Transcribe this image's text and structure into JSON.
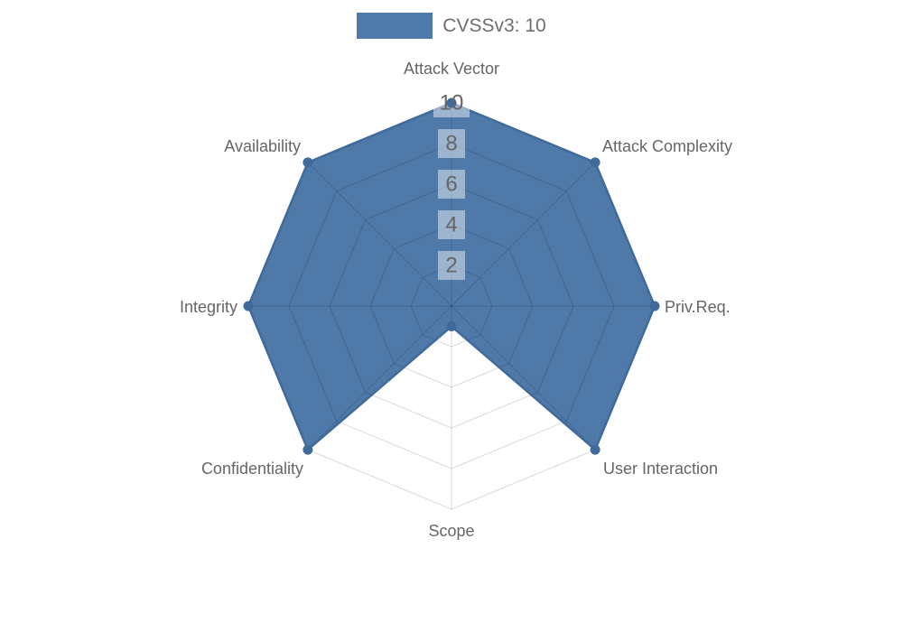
{
  "legend": {
    "label": "CVSSv3: 10",
    "swatch_color": "#4e79a8"
  },
  "chart_data": {
    "type": "radar",
    "title": "CVSSv3: 10",
    "categories": [
      "Attack Vector",
      "Attack Complexity",
      "Priv.Req.",
      "User Interaction",
      "Scope",
      "Confidentiality",
      "Integrity",
      "Availability"
    ],
    "series": [
      {
        "name": "CVSSv3: 10",
        "values": [
          10,
          10,
          10,
          10,
          1,
          10,
          10,
          10
        ]
      }
    ],
    "scale": {
      "min": 0,
      "max": 10,
      "ticks": [
        2,
        4,
        6,
        8,
        10
      ]
    },
    "grid": true,
    "grid_shape": "polygon",
    "legend_position": "top",
    "colors": {
      "fill": "#4e79a8",
      "border": "#3f6a99",
      "point": "#3f6a99",
      "grid_line": "rgba(0,0,0,0.15)",
      "tick_text": "#666666",
      "tick_backdrop": "rgba(255,255,255,0.45)",
      "axis_label": "#666666",
      "legend_text": "#6e6e6e"
    }
  }
}
